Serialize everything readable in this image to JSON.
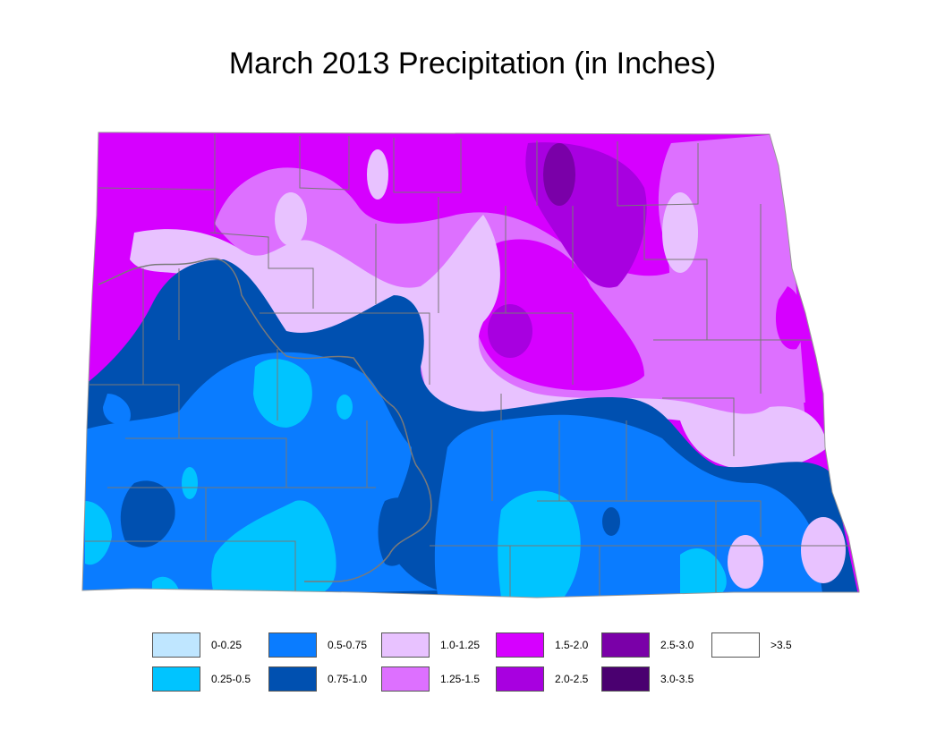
{
  "title": "March 2013 Precipitation (in Inches)",
  "legend": [
    {
      "label": "0-0.25",
      "color": "#bfe6ff"
    },
    {
      "label": "0.5-0.75",
      "color": "#0a7cff"
    },
    {
      "label": "1.0-1.25",
      "color": "#e8c2ff"
    },
    {
      "label": "1.5-2.0",
      "color": "#d600ff"
    },
    {
      "label": "2.5-3.0",
      "color": "#7a00a8"
    },
    {
      "label": ">3.5",
      "color": "#ffffff"
    },
    {
      "label": "0.25-0.5",
      "color": "#00c4ff"
    },
    {
      "label": "0.75-1.0",
      "color": "#0050b0"
    },
    {
      "label": "1.25-1.5",
      "color": "#dd70ff"
    },
    {
      "label": "2.0-2.5",
      "color": "#a800e0"
    },
    {
      "label": "3.0-3.5",
      "color": "#4a0070"
    }
  ]
}
